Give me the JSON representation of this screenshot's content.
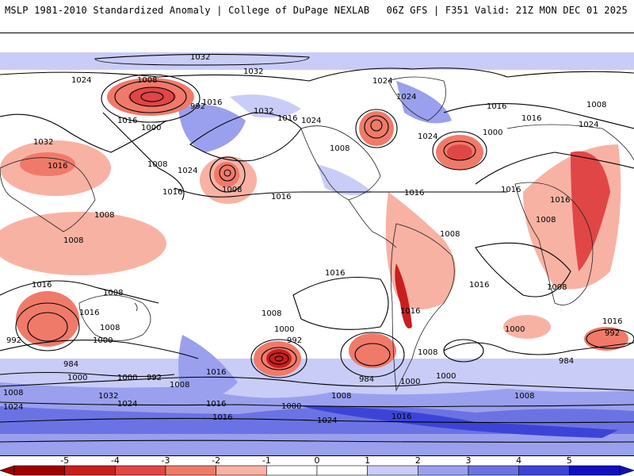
{
  "header": {
    "title_left": "MSLP 1981-2010 Standardized Anomaly | College of DuPage NEXLAB",
    "title_right": "06Z GFS | F351 Valid: 21Z MON DEC 01 2025"
  },
  "colorbar": {
    "ticks": [
      "-5",
      "-4",
      "-3",
      "-2",
      "-1",
      "0",
      "1",
      "2",
      "3",
      "4",
      "5"
    ],
    "colors": [
      "#a00000",
      "#c81e1e",
      "#e14646",
      "#f07a6a",
      "#f8b2a4",
      "#ffffff",
      "#ffffff",
      "#c9ccf7",
      "#9aa0ee",
      "#6b73e4",
      "#3c44d8",
      "#1010c0"
    ]
  },
  "contour_labels": [
    {
      "id": "l1032a",
      "text": "1032"
    },
    {
      "id": "l1032b",
      "text": "1032"
    },
    {
      "id": "l1024a",
      "text": "1024"
    },
    {
      "id": "l1008a",
      "text": "1008"
    },
    {
      "id": "l992a",
      "text": "992"
    },
    {
      "id": "l1016a",
      "text": "1016"
    },
    {
      "id": "l1016b",
      "text": "1016"
    },
    {
      "id": "l1000a",
      "text": "1000"
    },
    {
      "id": "l1032c",
      "text": "1032"
    },
    {
      "id": "l1016c",
      "text": "1016"
    },
    {
      "id": "l1024b",
      "text": "1024"
    },
    {
      "id": "l1024c",
      "text": "1024"
    },
    {
      "id": "l1024d",
      "text": "1024"
    },
    {
      "id": "l1024e",
      "text": "1024"
    },
    {
      "id": "l1032d",
      "text": "1032"
    },
    {
      "id": "l1016d",
      "text": "1016"
    },
    {
      "id": "l1008b",
      "text": "1008"
    },
    {
      "id": "l1008c",
      "text": "1008"
    },
    {
      "id": "l1024f",
      "text": "1024"
    },
    {
      "id": "l1016e",
      "text": "1016"
    },
    {
      "id": "l1008d",
      "text": "1008"
    },
    {
      "id": "l1016f",
      "text": "1016"
    },
    {
      "id": "l1008e",
      "text": "1008"
    },
    {
      "id": "l1016g",
      "text": "1016"
    },
    {
      "id": "l1000b",
      "text": "1000"
    },
    {
      "id": "l1008f",
      "text": "1008"
    },
    {
      "id": "l1024g",
      "text": "1024"
    },
    {
      "id": "l1016h",
      "text": "1016"
    },
    {
      "id": "l1008g",
      "text": "1008"
    },
    {
      "id": "l1016i",
      "text": "1016"
    },
    {
      "id": "l1016j",
      "text": "1016"
    },
    {
      "id": "l1016k",
      "text": "1016"
    },
    {
      "id": "l1008h",
      "text": "1008"
    },
    {
      "id": "l1008i",
      "text": "1008"
    },
    {
      "id": "l1016l",
      "text": "1016"
    },
    {
      "id": "l1008j",
      "text": "1008"
    },
    {
      "id": "l1016m",
      "text": "1016"
    },
    {
      "id": "l1016n",
      "text": "1016"
    },
    {
      "id": "l1008k",
      "text": "1008"
    },
    {
      "id": "l1000c",
      "text": "1000"
    },
    {
      "id": "l992b",
      "text": "992"
    },
    {
      "id": "l984a",
      "text": "984"
    },
    {
      "id": "l1016o",
      "text": "1016"
    },
    {
      "id": "l1000d",
      "text": "1000"
    },
    {
      "id": "l992c",
      "text": "992"
    },
    {
      "id": "l1008l",
      "text": "1008"
    },
    {
      "id": "l1016p",
      "text": "1016"
    },
    {
      "id": "l1008m",
      "text": "1008"
    },
    {
      "id": "l1000e",
      "text": "1000"
    },
    {
      "id": "l992d",
      "text": "992"
    },
    {
      "id": "l984b",
      "text": "984"
    },
    {
      "id": "l1000f",
      "text": "1000"
    },
    {
      "id": "l1008n",
      "text": "1008"
    },
    {
      "id": "l1000g",
      "text": "1000"
    },
    {
      "id": "l1008o",
      "text": "1008"
    },
    {
      "id": "l1000h",
      "text": "1000"
    },
    {
      "id": "l1016q",
      "text": "1016"
    },
    {
      "id": "l992e",
      "text": "992"
    },
    {
      "id": "l1000i",
      "text": "1000"
    },
    {
      "id": "l984c",
      "text": "984"
    },
    {
      "id": "l1008p",
      "text": "1008"
    },
    {
      "id": "l1016r",
      "text": "1016"
    },
    {
      "id": "l1008q",
      "text": "1008"
    },
    {
      "id": "l1024h",
      "text": "1024"
    },
    {
      "id": "l1032e",
      "text": "1032"
    },
    {
      "id": "l1024i",
      "text": "1024"
    },
    {
      "id": "l1016s",
      "text": "1016"
    },
    {
      "id": "l1000j",
      "text": "1000"
    },
    {
      "id": "l1024j",
      "text": "1024"
    },
    {
      "id": "l1016t",
      "text": "1016"
    },
    {
      "id": "l1008r",
      "text": "1008"
    },
    {
      "id": "l1016u",
      "text": "1016"
    }
  ]
}
